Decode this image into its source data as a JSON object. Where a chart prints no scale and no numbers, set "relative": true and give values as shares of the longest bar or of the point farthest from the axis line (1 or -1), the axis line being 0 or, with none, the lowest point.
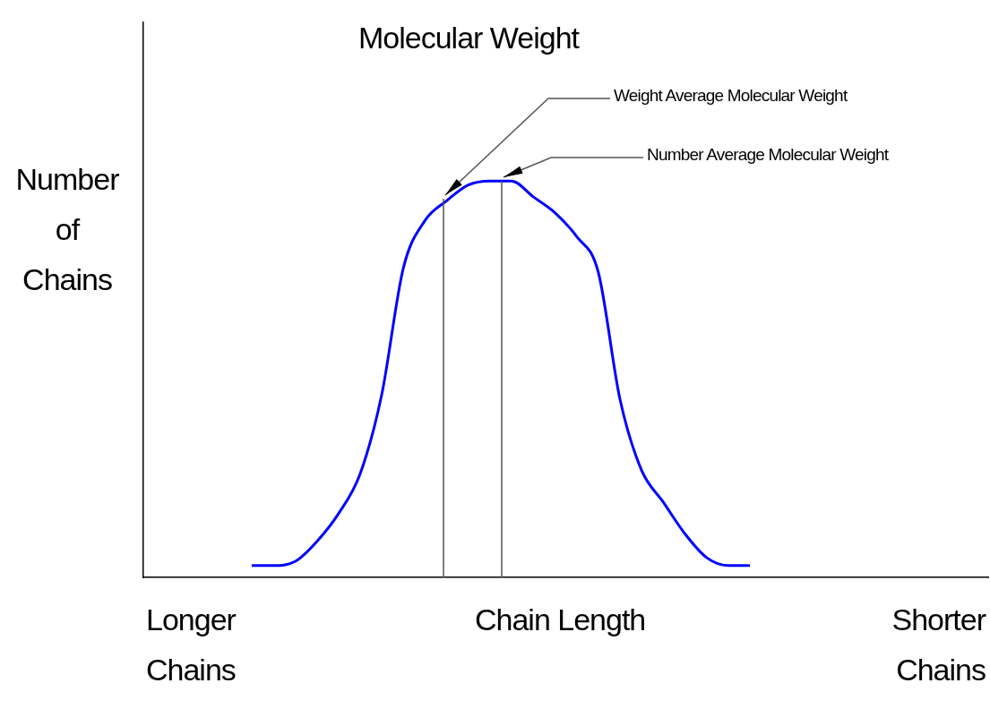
{
  "chart_data": {
    "type": "line",
    "relative": true,
    "title": "Molecular Weight",
    "xlabel": "Chain Length",
    "ylabel": "Number\nof\nChains",
    "categories": [
      null,
      null,
      null,
      null,
      null,
      null,
      null,
      null,
      null,
      null,
      null,
      null,
      null,
      null,
      null,
      null,
      null,
      null,
      null,
      null,
      null,
      null,
      null,
      null,
      null,
      null,
      null,
      null,
      null,
      null,
      null,
      null,
      null,
      null,
      null,
      null,
      null,
      null,
      null,
      null
    ],
    "series": [
      {
        "color": "#0000ff",
        "values": [
          null,
          null,
          null,
          null,
          null,
          0.03,
          0.03,
          0.04,
          0.09,
          0.16,
          0.26,
          0.46,
          0.78,
          0.9,
          0.95,
          0.99,
          1,
          1,
          0.96,
          0.92,
          0.86,
          0.77,
          0.45,
          0.27,
          0.19,
          0.11,
          0.05,
          0.03,
          0.03,
          null,
          null,
          null,
          null,
          null,
          null,
          null,
          null,
          null,
          null,
          null
        ]
      }
    ],
    "annotations": [
      "Longer\nChains",
      "Shorter\nChains",
      "Weight Average Molecular Weight",
      "Number Average Molecular Weight"
    ],
    "marker": "none",
    "line_style": "solid",
    "grid": false,
    "legend": false
  }
}
